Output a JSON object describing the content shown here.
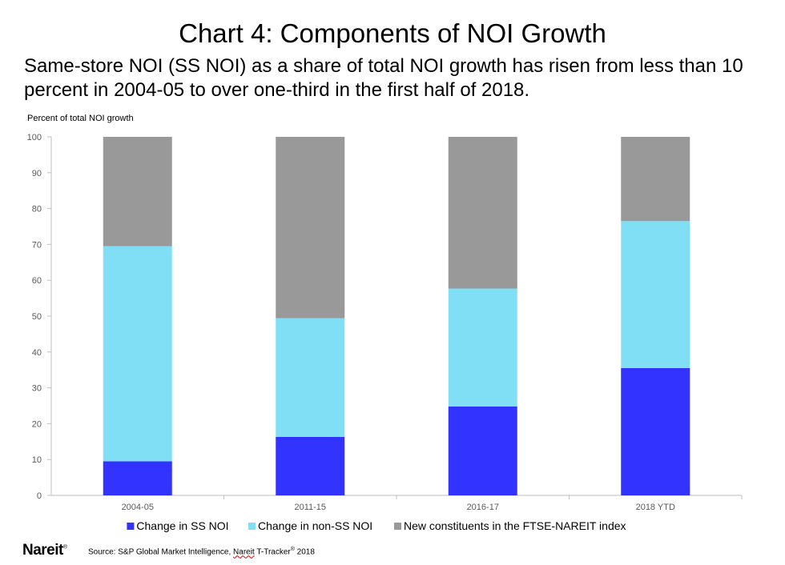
{
  "title": "Chart 4: Components of NOI Growth",
  "subtitle": "Same-store NOI (SS NOI) as a share of total NOI growth has risen from less than 10 percent in 2004-05 to over one-third in the first half of 2018.",
  "footer": {
    "logo": "Nareit",
    "source_prefix": "Source: S&P Global Market Intelligence, ",
    "source_brand": "Nareit",
    "source_product": " T-Tracker",
    "source_sup": "®",
    "source_year": " 2018"
  },
  "colors": {
    "ss": "#3333ff",
    "non_ss": "#80dff5",
    "new": "#999999",
    "axis": "#bfbfbf",
    "text": "#595959"
  },
  "chart_data": {
    "type": "bar",
    "stacked": true,
    "ylabel": "Percent of total NOI growth",
    "ylim": [
      0,
      100
    ],
    "yticks": [
      0,
      10,
      20,
      30,
      40,
      50,
      60,
      70,
      80,
      90,
      100
    ],
    "categories": [
      "2004-05",
      "2011-15",
      "2016-17",
      "2018 YTD"
    ],
    "series": [
      {
        "name": "Change in SS NOI",
        "color": "#3333ff",
        "values": [
          9.5,
          16.3,
          24.8,
          35.5
        ]
      },
      {
        "name": "Change in non-SS NOI",
        "color": "#80dff5",
        "values": [
          60.0,
          33.1,
          32.9,
          41.0
        ]
      },
      {
        "name": "New constituents in the FTSE-NAREIT index",
        "color": "#999999",
        "values": [
          30.5,
          50.6,
          42.3,
          23.5
        ]
      }
    ],
    "legend": "bottom",
    "grid": false
  }
}
